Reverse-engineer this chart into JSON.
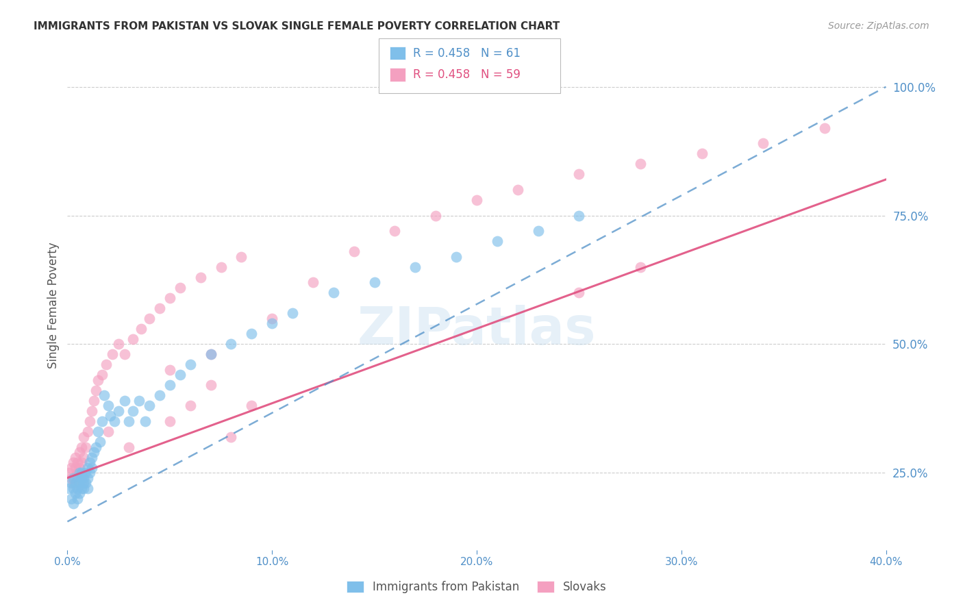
{
  "title": "IMMIGRANTS FROM PAKISTAN VS SLOVAK SINGLE FEMALE POVERTY CORRELATION CHART",
  "source": "Source: ZipAtlas.com",
  "ylabel_left": "Single Female Poverty",
  "x_tick_labels": [
    "0.0%",
    "",
    "10.0%",
    "",
    "20.0%",
    "",
    "30.0%",
    "",
    "40.0%"
  ],
  "x_ticks": [
    0.0,
    0.05,
    0.1,
    0.15,
    0.2,
    0.25,
    0.3,
    0.35,
    0.4
  ],
  "y_tick_labels_right": [
    "100.0%",
    "75.0%",
    "50.0%",
    "25.0%"
  ],
  "y_ticks_right": [
    1.0,
    0.75,
    0.5,
    0.25
  ],
  "xlim": [
    0.0,
    0.4
  ],
  "ylim": [
    0.1,
    1.05
  ],
  "legend_labels": [
    "Immigrants from Pakistan",
    "Slovaks"
  ],
  "legend_R": [
    0.458,
    0.458
  ],
  "legend_N": [
    61,
    59
  ],
  "blue_color": "#7fbfea",
  "pink_color": "#f4a0c0",
  "blue_dark": "#5090c8",
  "pink_dark": "#e05080",
  "axis_color": "#5090c8",
  "grid_color": "#cccccc",
  "pakistan_x": [
    0.001,
    0.002,
    0.002,
    0.003,
    0.003,
    0.003,
    0.004,
    0.004,
    0.005,
    0.005,
    0.005,
    0.006,
    0.006,
    0.006,
    0.007,
    0.007,
    0.007,
    0.008,
    0.008,
    0.008,
    0.009,
    0.009,
    0.01,
    0.01,
    0.01,
    0.011,
    0.011,
    0.012,
    0.012,
    0.013,
    0.014,
    0.015,
    0.016,
    0.017,
    0.018,
    0.02,
    0.021,
    0.023,
    0.025,
    0.028,
    0.03,
    0.032,
    0.035,
    0.038,
    0.04,
    0.045,
    0.05,
    0.055,
    0.06,
    0.07,
    0.08,
    0.09,
    0.1,
    0.11,
    0.13,
    0.15,
    0.17,
    0.19,
    0.21,
    0.23,
    0.25
  ],
  "pakistan_y": [
    0.22,
    0.23,
    0.2,
    0.22,
    0.19,
    0.24,
    0.21,
    0.23,
    0.22,
    0.24,
    0.2,
    0.23,
    0.25,
    0.21,
    0.24,
    0.22,
    0.25,
    0.23,
    0.24,
    0.22,
    0.25,
    0.23,
    0.24,
    0.26,
    0.22,
    0.27,
    0.25,
    0.28,
    0.26,
    0.29,
    0.3,
    0.33,
    0.31,
    0.35,
    0.4,
    0.38,
    0.36,
    0.35,
    0.37,
    0.39,
    0.35,
    0.37,
    0.39,
    0.35,
    0.38,
    0.4,
    0.42,
    0.44,
    0.46,
    0.48,
    0.5,
    0.52,
    0.54,
    0.56,
    0.6,
    0.62,
    0.65,
    0.67,
    0.7,
    0.72,
    0.75
  ],
  "slovak_x": [
    0.001,
    0.002,
    0.002,
    0.003,
    0.003,
    0.004,
    0.004,
    0.005,
    0.005,
    0.006,
    0.006,
    0.007,
    0.007,
    0.008,
    0.008,
    0.009,
    0.01,
    0.011,
    0.012,
    0.013,
    0.014,
    0.015,
    0.017,
    0.019,
    0.022,
    0.025,
    0.028,
    0.032,
    0.036,
    0.04,
    0.045,
    0.05,
    0.055,
    0.065,
    0.075,
    0.085,
    0.1,
    0.12,
    0.14,
    0.16,
    0.18,
    0.2,
    0.22,
    0.25,
    0.28,
    0.31,
    0.34,
    0.37,
    0.25,
    0.28,
    0.05,
    0.06,
    0.07,
    0.08,
    0.09,
    0.05,
    0.07,
    0.02,
    0.03
  ],
  "slovak_y": [
    0.25,
    0.26,
    0.24,
    0.27,
    0.23,
    0.26,
    0.28,
    0.25,
    0.27,
    0.26,
    0.29,
    0.27,
    0.3,
    0.28,
    0.32,
    0.3,
    0.33,
    0.35,
    0.37,
    0.39,
    0.41,
    0.43,
    0.44,
    0.46,
    0.48,
    0.5,
    0.48,
    0.51,
    0.53,
    0.55,
    0.57,
    0.59,
    0.61,
    0.63,
    0.65,
    0.67,
    0.55,
    0.62,
    0.68,
    0.72,
    0.75,
    0.78,
    0.8,
    0.83,
    0.85,
    0.87,
    0.89,
    0.92,
    0.6,
    0.65,
    0.35,
    0.38,
    0.42,
    0.32,
    0.38,
    0.45,
    0.48,
    0.33,
    0.3
  ],
  "pak_line_x": [
    0.0,
    0.4
  ],
  "pak_line_y": [
    0.155,
    1.0
  ],
  "slo_line_x": [
    0.0,
    0.4
  ],
  "slo_line_y": [
    0.24,
    0.82
  ]
}
